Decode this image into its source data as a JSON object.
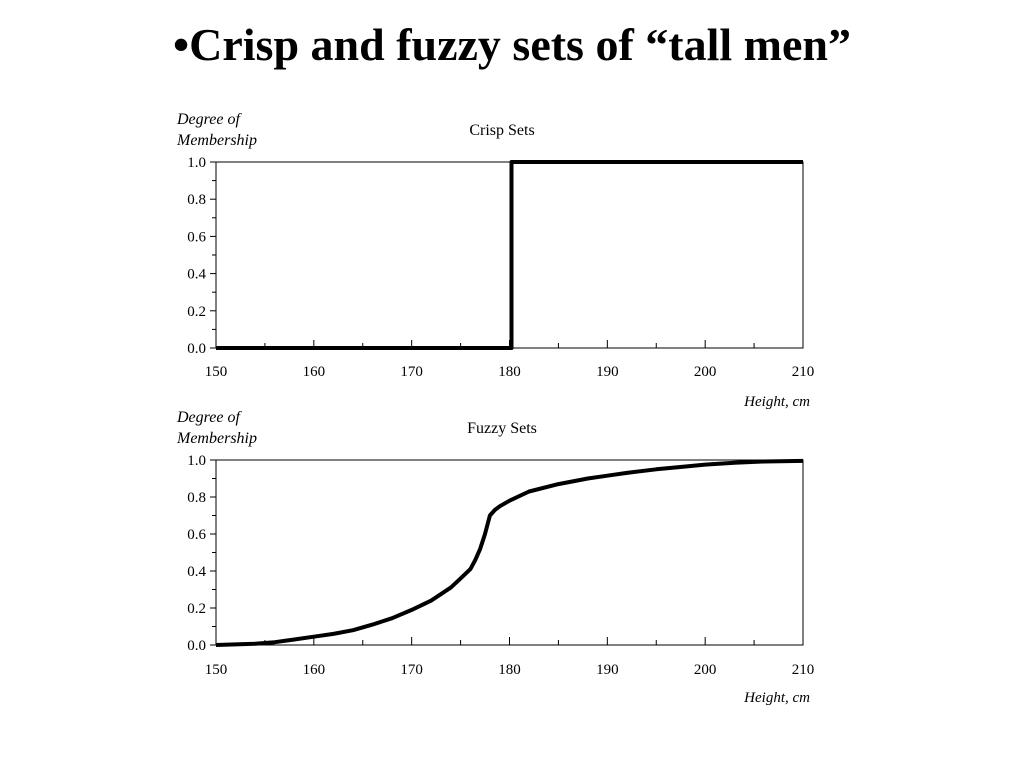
{
  "slide": {
    "title": "•Crisp and fuzzy sets of “tall men”"
  },
  "chart_data": [
    {
      "type": "line",
      "title": "Crisp Sets",
      "ylabel": [
        "Degree of",
        "Membership"
      ],
      "xlabel": "Height, cm",
      "xlim": [
        150,
        210
      ],
      "ylim": [
        0,
        1
      ],
      "x_ticks": [
        150,
        160,
        170,
        180,
        190,
        200,
        210
      ],
      "y_ticks": [
        "0.0",
        "0.2",
        "0.4",
        "0.6",
        "0.8",
        "1.0"
      ],
      "grid": false,
      "series": [
        {
          "x": [
            150,
            180.2,
            180.2,
            210
          ],
          "y": [
            0,
            0,
            1,
            1
          ]
        }
      ]
    },
    {
      "type": "line",
      "title": "Fuzzy Sets",
      "ylabel": [
        "Degree of",
        "Membership"
      ],
      "xlabel": "Height, cm",
      "xlim": [
        150,
        210
      ],
      "ylim": [
        0,
        1
      ],
      "x_ticks": [
        150,
        160,
        170,
        180,
        190,
        200,
        210
      ],
      "y_ticks": [
        "0.0",
        "0.2",
        "0.4",
        "0.6",
        "0.8",
        "1.0"
      ],
      "grid": false,
      "series": [
        {
          "x": [
            150,
            152,
            154,
            156,
            158,
            160,
            162,
            164,
            166,
            168,
            170,
            172,
            174,
            175,
            176,
            176.5,
            177,
            177.5,
            178,
            178.5,
            179,
            180,
            182,
            185,
            188,
            190,
            192,
            195,
            198,
            200,
            203,
            206,
            210
          ],
          "y": [
            0,
            0.003,
            0.007,
            0.015,
            0.03,
            0.045,
            0.06,
            0.08,
            0.11,
            0.145,
            0.19,
            0.24,
            0.31,
            0.36,
            0.41,
            0.46,
            0.52,
            0.6,
            0.7,
            0.73,
            0.75,
            0.78,
            0.83,
            0.87,
            0.9,
            0.915,
            0.93,
            0.95,
            0.965,
            0.975,
            0.985,
            0.992,
            0.995
          ]
        }
      ]
    }
  ]
}
